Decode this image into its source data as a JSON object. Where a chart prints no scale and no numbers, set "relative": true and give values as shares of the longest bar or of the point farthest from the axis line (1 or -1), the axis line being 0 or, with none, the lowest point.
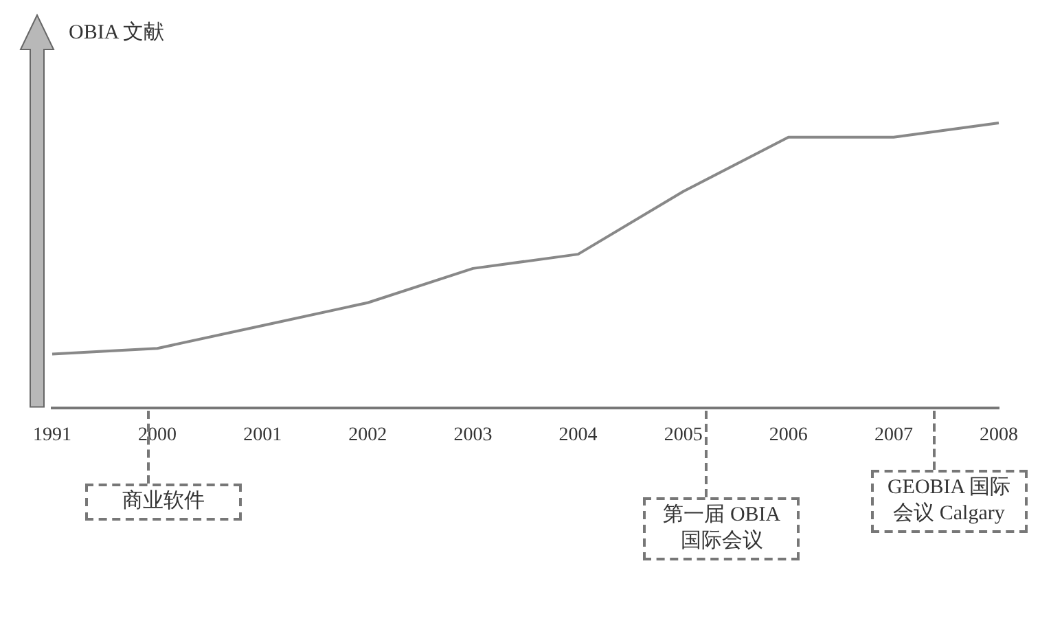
{
  "chart_data": {
    "type": "line",
    "relative": true,
    "ylabel": "OBIA 文献",
    "categories": [
      "1991",
      "2000",
      "2001",
      "2002",
      "2003",
      "2004",
      "2005",
      "2006",
      "2007",
      "2008"
    ],
    "series": [
      {
        "color": "#888888",
        "values": [
          0.19,
          0.21,
          0.29,
          0.37,
          0.49,
          0.54,
          0.76,
          0.95,
          0.95,
          1
        ]
      }
    ],
    "marker": "none",
    "grid": false,
    "legend": false,
    "annotations": [
      "商业软件",
      "第一届 OBIA 国际会议",
      "GEOBIA 国际会议 Calgary"
    ]
  }
}
